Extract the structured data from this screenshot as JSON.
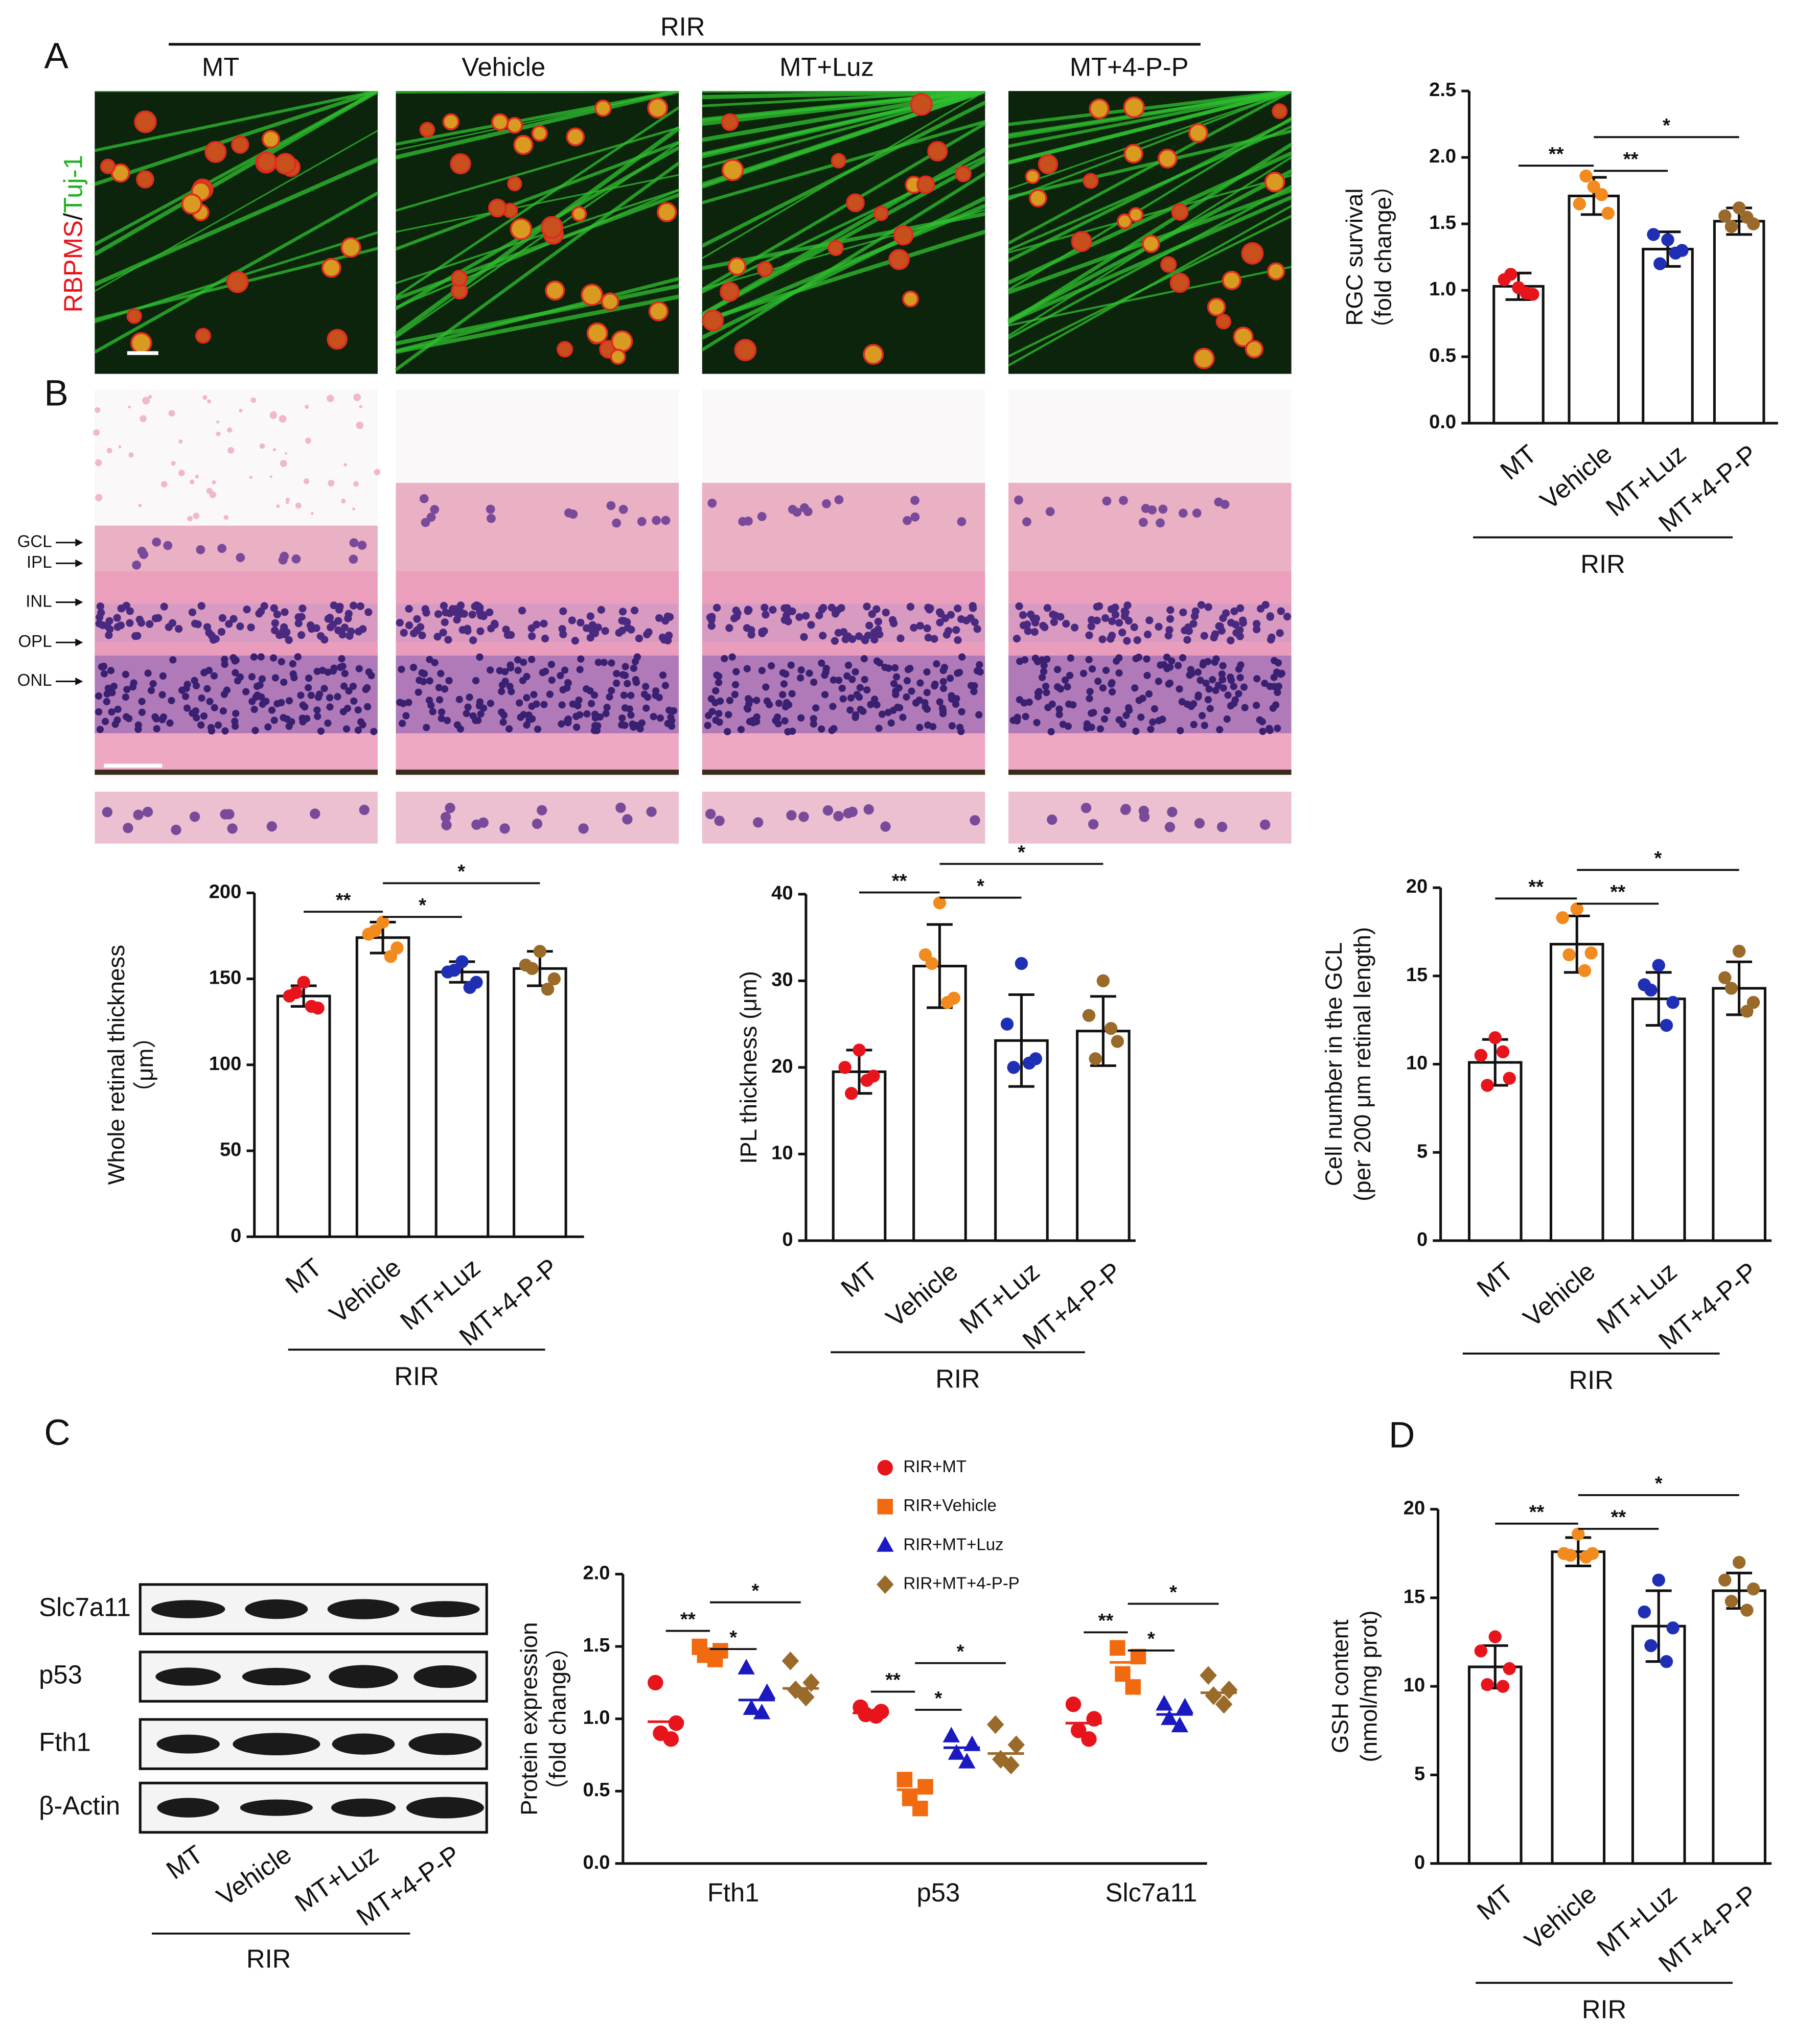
{
  "panel_labels": [
    "A",
    "B",
    "C",
    "D"
  ],
  "micrographs": {
    "group": "RIR",
    "columns": [
      "MT",
      "Vehicle",
      "MT+Luz",
      "MT+4-P-P"
    ],
    "stain_red": "RBPMS",
    "stain_separator": "/",
    "stain_green": "Tuj-1",
    "layers": [
      "GCL",
      "IPL",
      "INL",
      "OPL",
      "ONL"
    ]
  },
  "blot": {
    "rows": [
      "Slc7a11",
      "p53",
      "Fth1",
      "β-Actin"
    ],
    "lanes": [
      "MT",
      "Vehicle",
      "MT+Luz",
      "MT+4-P-P"
    ],
    "group": "RIR"
  },
  "chart_data": [
    {
      "type": "bar",
      "ylabel": [
        "RGC  survival",
        "（fold change）"
      ],
      "categories": [
        "MT",
        "Vehicle",
        "MT+Luz",
        "MT+4-P-P"
      ],
      "colors": [
        "#e8141c",
        "#f28a1e",
        "#1f2fb5",
        "#9a6a2a"
      ],
      "values": [
        1.03,
        1.71,
        1.31,
        1.52
      ],
      "errors": [
        0.1,
        0.14,
        0.13,
        0.1
      ],
      "points": [
        [
          1.02,
          1.08,
          0.97,
          1.12,
          0.98
        ],
        [
          1.78,
          1.65,
          1.58,
          1.86,
          1.72
        ],
        [
          1.38,
          1.42,
          1.3,
          1.2,
          1.28
        ],
        [
          1.62,
          1.56,
          1.5,
          1.48,
          1.55
        ]
      ],
      "ylim": [
        0,
        2.5
      ],
      "yticks": [
        {
          "value": 0,
          "label": "0.0"
        },
        0.5,
        {
          "value": 1,
          "label": "1.0"
        },
        1.5,
        {
          "value": 2,
          "label": "2.0"
        },
        2.5
      ],
      "group_label": "RIR",
      "significance": [
        "**",
        "**",
        "*"
      ]
    },
    {
      "type": "bar",
      "ylabel": [
        "Whole retinal thickness",
        "（μm）"
      ],
      "categories": [
        "MT",
        "Vehicle",
        "MT+Luz",
        "MT+4-P-P"
      ],
      "colors": [
        "#e8141c",
        "#f28a1e",
        "#1f2fb5",
        "#9a6a2a"
      ],
      "values": [
        140,
        174,
        154,
        156
      ],
      "errors": [
        6,
        9,
        6,
        10
      ],
      "points": [
        [
          148,
          140,
          133,
          142,
          134
        ],
        [
          183,
          176,
          168,
          178,
          163
        ],
        [
          160,
          154,
          148,
          155,
          145
        ],
        [
          166,
          158,
          150,
          156,
          144
        ]
      ],
      "ylim": [
        0,
        200
      ],
      "yticks": [
        0,
        50,
        100,
        150,
        200
      ],
      "group_label": "RIR",
      "significance": [
        "**",
        "*",
        "*"
      ]
    },
    {
      "type": "bar",
      "ylabel": [
        "IPL thickness (μm)"
      ],
      "categories": [
        "MT",
        "Vehicle",
        "MT+Luz",
        "MT+4-P-P"
      ],
      "colors": [
        "#e8141c",
        "#f28a1e",
        "#1f2fb5",
        "#9a6a2a"
      ],
      "values": [
        19.5,
        31.7,
        23.1,
        24.2
      ],
      "errors": [
        2.5,
        4.8,
        5.3,
        4
      ],
      "points": [
        [
          22,
          20,
          19,
          17,
          18.5
        ],
        [
          39,
          33,
          28,
          32,
          27.5
        ],
        [
          32,
          25,
          21,
          20,
          20.5
        ],
        [
          30,
          26,
          23,
          21,
          24.5
        ]
      ],
      "ylim": [
        0,
        40
      ],
      "yticks": [
        0,
        10,
        20,
        30,
        40
      ],
      "group_label": "RIR",
      "significance": [
        "**",
        "*",
        "*"
      ]
    },
    {
      "type": "bar",
      "ylabel": [
        "Cell number in the GCL",
        "(per 200 μm retinal length)"
      ],
      "categories": [
        "MT",
        "Vehicle",
        "MT+Luz",
        "MT+4-P-P"
      ],
      "colors": [
        "#e8141c",
        "#f28a1e",
        "#1f2fb5",
        "#9a6a2a"
      ],
      "values": [
        10.1,
        16.8,
        13.7,
        14.3
      ],
      "errors": [
        1.3,
        1.6,
        1.5,
        1.5
      ],
      "points": [
        [
          11.5,
          10.5,
          9.2,
          8.8,
          10.7
        ],
        [
          18.8,
          18.3,
          16.3,
          16.2,
          15.3
        ],
        [
          15.6,
          14.5,
          13.5,
          14.2,
          12.2
        ],
        [
          16.4,
          14.9,
          13.5,
          14.3,
          13
        ]
      ],
      "ylim": [
        0,
        20
      ],
      "yticks": [
        0,
        5,
        10,
        15,
        20
      ],
      "group_label": "RIR",
      "significance": [
        "**",
        "**",
        "*"
      ]
    },
    {
      "type": "dot",
      "ylabel": [
        "Protein expression",
        "（fold change）"
      ],
      "categories": [
        "Fth1",
        "p53",
        "Slc7a11"
      ],
      "series": [
        {
          "name": "RIR+MT",
          "color": "#e8141c",
          "marker": "circle",
          "values": [
            [
              1.25,
              0.97,
              0.9,
              0.86
            ],
            [
              1.08,
              1.05,
              1.03,
              1.02
            ],
            [
              1.1,
              1.0,
              0.92,
              0.86
            ]
          ],
          "medians": [
            0.98,
            1.04,
            0.97
          ]
        },
        {
          "name": "RIR+Vehicle",
          "color": "#f26a10",
          "marker": "square",
          "values": [
            [
              1.5,
              1.47,
              1.44,
              1.41
            ],
            [
              0.58,
              0.53,
              0.45,
              0.38
            ],
            [
              1.49,
              1.43,
              1.31,
              1.22
            ]
          ],
          "medians": [
            1.45,
            0.51,
            1.39
          ]
        },
        {
          "name": "RIR+MT+Luz",
          "color": "#1a1ac0",
          "marker": "triangle",
          "values": [
            [
              1.35,
              1.18,
              1.07,
              1.04
            ],
            [
              0.88,
              0.82,
              0.76,
              0.7
            ],
            [
              1.1,
              1.08,
              1.0,
              0.95
            ]
          ],
          "medians": [
            1.13,
            0.8,
            1.03
          ]
        },
        {
          "name": "RIR+MT+4-P-P",
          "color": "#9a6a2a",
          "marker": "diamond",
          "values": [
            [
              1.4,
              1.25,
              1.2,
              1.15
            ],
            [
              0.96,
              0.82,
              0.72,
              0.68
            ],
            [
              1.3,
              1.2,
              1.16,
              1.1
            ]
          ],
          "medians": [
            1.21,
            0.76,
            1.18
          ]
        }
      ],
      "ylim": [
        0,
        2
      ],
      "yticks": [
        {
          "value": 0,
          "label": "0.0"
        },
        0.5,
        {
          "value": 1,
          "label": "1.0"
        },
        1.5,
        {
          "value": 2,
          "label": "2.0"
        }
      ],
      "significance": [
        [
          "**",
          "*",
          "*"
        ],
        [
          "**",
          "*",
          "*"
        ],
        [
          "**",
          "*",
          "*"
        ]
      ]
    },
    {
      "type": "bar",
      "ylabel": [
        "GSH content",
        "(nmol/mg prot)"
      ],
      "categories": [
        "MT",
        "Vehicle",
        "MT+Luz",
        "MT+4-P-P"
      ],
      "colors": [
        "#e8141c",
        "#f28a1e",
        "#1f2fb5",
        "#9a6a2a"
      ],
      "values": [
        11.1,
        17.6,
        13.4,
        15.4
      ],
      "errors": [
        1.2,
        0.8,
        2.0,
        1.0
      ],
      "points": [
        [
          12.8,
          12,
          11,
          10.1,
          10
        ],
        [
          18.6,
          17.5,
          17.5,
          17.4,
          17.3
        ],
        [
          16,
          14.2,
          13.3,
          12.3,
          11.4
        ],
        [
          17,
          16,
          15.5,
          14.8,
          14.3
        ]
      ],
      "ylim": [
        0,
        20
      ],
      "yticks": [
        0,
        5,
        10,
        15,
        20
      ],
      "group_label": "RIR",
      "significance": [
        "**",
        "**",
        "*"
      ]
    }
  ]
}
